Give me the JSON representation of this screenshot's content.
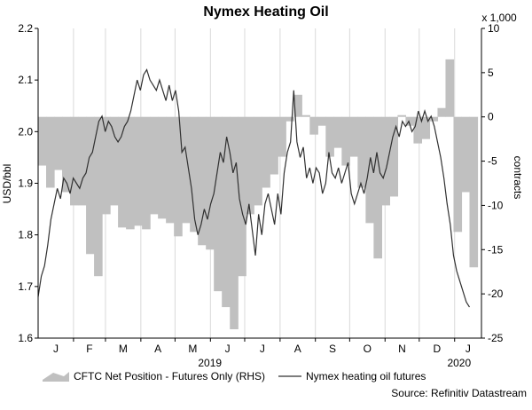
{
  "chart_data": {
    "type": "bar+line",
    "title": "Nymex Heating Oil",
    "ylabel_left": "USD/bbl",
    "ylabel_right": "contracts",
    "right_unit": "x 1,000",
    "ylim_left": [
      1.6,
      2.2
    ],
    "yticks_left": [
      "1.6",
      "1.7",
      "1.8",
      "1.9",
      "2.0",
      "2.1",
      "2.2"
    ],
    "ylim_right": [
      -25,
      10
    ],
    "yticks_right": [
      "-25",
      "-20",
      "-15",
      "-10",
      "-5",
      "0",
      "5",
      "10"
    ],
    "months": [
      "J",
      "F",
      "M",
      "A",
      "M",
      "J",
      "J",
      "A",
      "S",
      "O",
      "N",
      "D",
      "J"
    ],
    "year_labels": [
      {
        "text": "2019",
        "week": 21.5
      },
      {
        "text": "2020",
        "week": 52.7
      }
    ],
    "grid": "vertical",
    "legend_position": "bottom",
    "source": "Source: Refinitiv Datastream",
    "series": [
      {
        "name": "CFTC Net Position - Futures Only (RHS)",
        "kind": "bar",
        "axis": "right",
        "color": "#c0c0c0",
        "weeks": [
          0,
          1,
          2,
          3,
          4,
          5,
          6,
          7,
          8,
          9,
          10,
          11,
          12,
          13,
          14,
          15,
          16,
          17,
          18,
          19,
          20,
          21,
          22,
          23,
          24,
          25,
          26,
          27,
          28,
          29,
          30,
          31,
          32,
          33,
          34,
          35,
          36,
          37,
          38,
          39,
          40,
          41,
          42,
          43,
          44,
          45,
          46,
          47,
          48,
          49,
          50,
          51,
          52,
          53,
          54
        ],
        "values": [
          -5.5,
          -8,
          -6,
          -8.5,
          -10,
          -10,
          -15.5,
          -18,
          -11,
          -10,
          -12.5,
          -12.7,
          -12.3,
          -12.7,
          -11,
          -11.5,
          -12,
          -13.5,
          -12,
          -13,
          -14.5,
          -15,
          -19.7,
          -21.5,
          -24,
          -18,
          -11,
          -10,
          -8,
          -6.5,
          -4.5,
          -0.5,
          2.5,
          0.2,
          -2,
          -1,
          -4.5,
          -3.5,
          -5.5,
          -4.5,
          -8,
          -12,
          -16,
          -10,
          -9,
          0.2,
          -1,
          -3,
          -2.5,
          -0.5,
          1,
          6.5,
          -13,
          -8.5,
          -17
        ]
      },
      {
        "name": "Nymex heating oil futures",
        "kind": "line",
        "axis": "left",
        "color": "#303030",
        "points": [
          [
            0,
            1.68
          ],
          [
            0.4,
            1.72
          ],
          [
            0.8,
            1.74
          ],
          [
            1.2,
            1.78
          ],
          [
            1.6,
            1.83
          ],
          [
            2,
            1.86
          ],
          [
            2.4,
            1.89
          ],
          [
            2.8,
            1.87
          ],
          [
            3.2,
            1.91
          ],
          [
            3.6,
            1.9
          ],
          [
            4,
            1.88
          ],
          [
            4.4,
            1.91
          ],
          [
            4.8,
            1.9
          ],
          [
            5.2,
            1.89
          ],
          [
            5.6,
            1.91
          ],
          [
            6,
            1.92
          ],
          [
            6.4,
            1.95
          ],
          [
            6.8,
            1.96
          ],
          [
            7.2,
            1.99
          ],
          [
            7.6,
            2.02
          ],
          [
            8,
            2.03
          ],
          [
            8.4,
            2.0
          ],
          [
            8.8,
            2.02
          ],
          [
            9.2,
            2.01
          ],
          [
            9.6,
            1.99
          ],
          [
            10,
            1.98
          ],
          [
            10.4,
            1.99
          ],
          [
            10.8,
            2.01
          ],
          [
            11.2,
            2.02
          ],
          [
            11.6,
            2.04
          ],
          [
            12,
            2.07
          ],
          [
            12.4,
            2.1
          ],
          [
            12.8,
            2.08
          ],
          [
            13.2,
            2.11
          ],
          [
            13.6,
            2.12
          ],
          [
            14,
            2.1
          ],
          [
            14.4,
            2.09
          ],
          [
            14.8,
            2.08
          ],
          [
            15.2,
            2.1
          ],
          [
            15.6,
            2.08
          ],
          [
            16,
            2.06
          ],
          [
            16.4,
            2.09
          ],
          [
            16.8,
            2.06
          ],
          [
            17.2,
            2.08
          ],
          [
            17.6,
            2.04
          ],
          [
            18,
            1.96
          ],
          [
            18.4,
            1.97
          ],
          [
            18.8,
            1.93
          ],
          [
            19.2,
            1.89
          ],
          [
            19.6,
            1.83
          ],
          [
            20,
            1.8
          ],
          [
            20.4,
            1.82
          ],
          [
            20.8,
            1.85
          ],
          [
            21.2,
            1.83
          ],
          [
            21.6,
            1.86
          ],
          [
            22,
            1.88
          ],
          [
            22.4,
            1.92
          ],
          [
            22.8,
            1.96
          ],
          [
            23.2,
            1.94
          ],
          [
            23.6,
            1.99
          ],
          [
            24,
            1.96
          ],
          [
            24.4,
            1.92
          ],
          [
            24.8,
            1.94
          ],
          [
            25.2,
            1.87
          ],
          [
            25.6,
            1.84
          ],
          [
            26,
            1.82
          ],
          [
            26.4,
            1.86
          ],
          [
            26.8,
            1.81
          ],
          [
            27.2,
            1.76
          ],
          [
            27.6,
            1.84
          ],
          [
            28,
            1.8
          ],
          [
            28.4,
            1.86
          ],
          [
            28.8,
            1.88
          ],
          [
            29.2,
            1.85
          ],
          [
            29.6,
            1.82
          ],
          [
            30,
            1.88
          ],
          [
            30.4,
            1.84
          ],
          [
            30.8,
            1.92
          ],
          [
            31.2,
            1.96
          ],
          [
            31.6,
            1.98
          ],
          [
            32,
            2.08
          ],
          [
            32.4,
            1.98
          ],
          [
            32.8,
            1.95
          ],
          [
            33.2,
            1.97
          ],
          [
            33.6,
            1.91
          ],
          [
            34,
            1.93
          ],
          [
            34.4,
            1.9
          ],
          [
            34.8,
            1.93
          ],
          [
            35.2,
            1.92
          ],
          [
            35.6,
            1.88
          ],
          [
            36,
            1.9
          ],
          [
            36.4,
            1.96
          ],
          [
            36.8,
            1.92
          ],
          [
            37.2,
            1.91
          ],
          [
            37.6,
            1.93
          ],
          [
            38,
            1.9
          ],
          [
            38.4,
            1.92
          ],
          [
            38.8,
            1.94
          ],
          [
            39.2,
            1.88
          ],
          [
            39.6,
            1.86
          ],
          [
            40,
            1.88
          ],
          [
            40.4,
            1.9
          ],
          [
            40.8,
            1.88
          ],
          [
            41.2,
            1.91
          ],
          [
            41.6,
            1.95
          ],
          [
            42,
            1.92
          ],
          [
            42.4,
            1.96
          ],
          [
            42.8,
            1.92
          ],
          [
            43.2,
            1.91
          ],
          [
            43.6,
            1.93
          ],
          [
            44,
            1.96
          ],
          [
            44.4,
            1.99
          ],
          [
            44.8,
            2.01
          ],
          [
            45.2,
            1.99
          ],
          [
            45.6,
            2.02
          ],
          [
            46,
            2.01
          ],
          [
            46.4,
            2.02
          ],
          [
            46.8,
            2.0
          ],
          [
            47.2,
            2.01
          ],
          [
            47.6,
            2.04
          ],
          [
            48,
            2.02
          ],
          [
            48.4,
            2.04
          ],
          [
            48.8,
            2.02
          ],
          [
            49.2,
            2.03
          ],
          [
            49.6,
            2.01
          ],
          [
            50,
            1.98
          ],
          [
            50.4,
            1.95
          ],
          [
            50.8,
            1.91
          ],
          [
            51.2,
            1.86
          ],
          [
            51.6,
            1.82
          ],
          [
            52,
            1.76
          ],
          [
            52.4,
            1.73
          ],
          [
            52.8,
            1.71
          ],
          [
            53.2,
            1.69
          ],
          [
            53.6,
            1.67
          ],
          [
            54,
            1.66
          ]
        ]
      }
    ]
  }
}
